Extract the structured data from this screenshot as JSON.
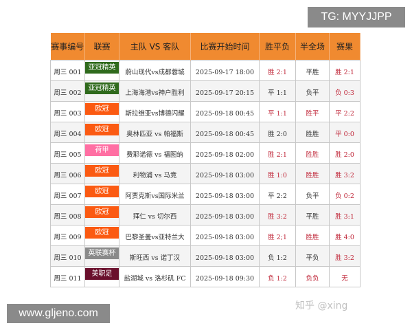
{
  "watermarks": {
    "tg": "TG: MYYJJPP",
    "site": "www.gljeno.com",
    "zhihu": "知乎 @xing"
  },
  "headers": [
    "赛事编号",
    "联赛",
    "主队 VS 客队",
    "比赛开始时间",
    "胜平负",
    "半全场",
    "赛果"
  ],
  "rows": [
    {
      "id": "周三 001",
      "league": "亚冠精英",
      "league_color": "#2f6a1c",
      "match": "蔚山现代vs成都蓉城",
      "time": "2025-09-17 18:00",
      "spf": "胜 2:1",
      "spf_red": true,
      "bqc": "平胜",
      "bqc_red": false,
      "result": "胜 2:1"
    },
    {
      "id": "周三 002",
      "league": "亚冠精英",
      "league_color": "#2f6a1c",
      "match": "上海海港vs神户胜利",
      "time": "2025-09-17 20:15",
      "spf": "平 1:1",
      "spf_red": false,
      "bqc": "负平",
      "bqc_red": false,
      "result": "负 0:3"
    },
    {
      "id": "周三 003",
      "league": "欧冠",
      "league_color": "#fb5a12",
      "match": "斯拉维亚vs博德闪耀",
      "time": "2025-09-18 00:45",
      "spf": "平 1:1",
      "spf_red": true,
      "bqc": "胜平",
      "bqc_red": true,
      "result": "平 2:2"
    },
    {
      "id": "周三 004",
      "league": "欧冠",
      "league_color": "#fb5a12",
      "match": "奥林匹亚 vs 帕福斯",
      "time": "2025-09-18 00:45",
      "spf": "胜 2:0",
      "spf_red": false,
      "bqc": "胜胜",
      "bqc_red": false,
      "result": "平 0:0"
    },
    {
      "id": "周三 005",
      "league": "荷甲",
      "league_color": "#ff6fa3",
      "match": "费耶诺德 vs 福图纳",
      "time": "2025-09-18 02:00",
      "spf": "胜 2:1",
      "spf_red": true,
      "bqc": "胜胜",
      "bqc_red": true,
      "result": "胜 2:0"
    },
    {
      "id": "周三 006",
      "league": "欧冠",
      "league_color": "#fb5a12",
      "match": "利物浦 vs 马竞",
      "time": "2025-09-18 03:00",
      "spf": "胜 1:0",
      "spf_red": true,
      "bqc": "胜胜",
      "bqc_red": true,
      "result": "胜 3:2"
    },
    {
      "id": "周三 007",
      "league": "欧冠",
      "league_color": "#fb5a12",
      "match": "阿贾克斯vs国际米兰",
      "time": "2025-09-18 03:00",
      "spf": "平 2:2",
      "spf_red": false,
      "bqc": "负平",
      "bqc_red": false,
      "result": "负 0:2"
    },
    {
      "id": "周三 008",
      "league": "欧冠",
      "league_color": "#fb5a12",
      "match": "拜仁 vs 切尔西",
      "time": "2025-09-18 03:00",
      "spf": "胜 3:2",
      "spf_red": true,
      "bqc": "平胜",
      "bqc_red": false,
      "result": "胜 3:1"
    },
    {
      "id": "周三 009",
      "league": "欧冠",
      "league_color": "#fb5a12",
      "match": "巴黎圣曼vs亚特兰大",
      "time": "2025-09-18 03:00",
      "spf": "胜 2;1",
      "spf_red": true,
      "bqc": "胜胜",
      "bqc_red": true,
      "result": "胜 4:0"
    },
    {
      "id": "周三 010",
      "league": "英联赛杯",
      "league_color": "#8a8a8a",
      "match": "斯旺西 vs 诺丁汉",
      "time": "2025-09-18 03:00",
      "spf": "负 1:2",
      "spf_red": false,
      "bqc": "平负",
      "bqc_red": false,
      "result": "胜 3:2"
    },
    {
      "id": "周三 011",
      "league": "美职足",
      "league_color": "#6a0f2c",
      "match": "盐湖城 vs 洛杉矶 FC",
      "time": "2025-09-18 09:30",
      "spf": "负 1:2",
      "spf_red": true,
      "bqc": "负负",
      "bqc_red": true,
      "result": "无"
    }
  ]
}
